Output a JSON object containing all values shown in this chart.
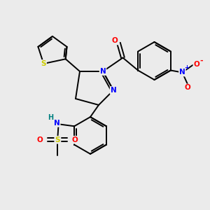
{
  "bg_color": "#ebebeb",
  "bond_color": "#000000",
  "atom_colors": {
    "S": "#cccc00",
    "N": "#0000ff",
    "O": "#ff0000",
    "H": "#008080",
    "C": "#000000"
  },
  "lw": 1.4,
  "fs": 7.5
}
